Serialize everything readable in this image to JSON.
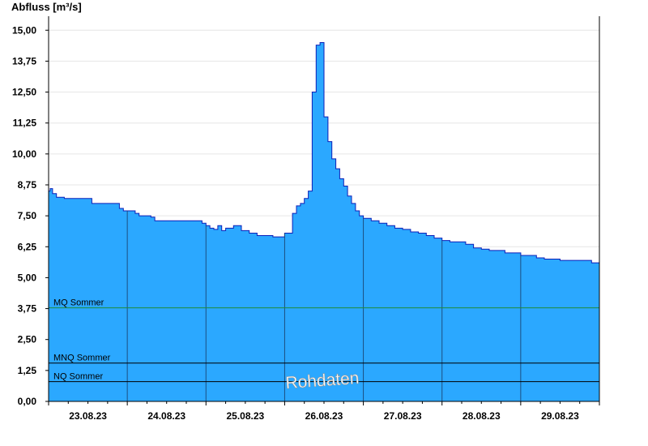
{
  "chart_data": {
    "type": "area",
    "ylabel": "Abfluss [m³/s]",
    "ylim": [
      0,
      15.5
    ],
    "yticks": [
      "0,00",
      "1,25",
      "2,50",
      "3,75",
      "5,00",
      "6,25",
      "7,50",
      "8,75",
      "10,00",
      "11,25",
      "12,50",
      "13,75",
      "15,00"
    ],
    "ytick_values": [
      0,
      1.25,
      2.5,
      3.75,
      5,
      6.25,
      7.5,
      8.75,
      10,
      11.25,
      12.5,
      13.75,
      15
    ],
    "xlim": [
      0,
      7
    ],
    "categories": [
      "23.08.23",
      "24.08.23",
      "25.08.23",
      "26.08.23",
      "27.08.23",
      "28.08.23",
      "29.08.23"
    ],
    "x": [
      0,
      0.02,
      0.05,
      0.1,
      0.2,
      0.4,
      0.55,
      0.58,
      0.9,
      0.95,
      1.1,
      1.15,
      1.3,
      1.35,
      1.5,
      1.9,
      1.95,
      2.0,
      2.05,
      2.1,
      2.15,
      2.2,
      2.25,
      2.35,
      2.45,
      2.55,
      2.65,
      2.7,
      2.75,
      2.85,
      3.0,
      3.1,
      3.15,
      3.2,
      3.25,
      3.3,
      3.35,
      3.4,
      3.45,
      3.5,
      3.55,
      3.6,
      3.65,
      3.7,
      3.75,
      3.8,
      3.85,
      3.9,
      3.95,
      4.0,
      4.1,
      4.2,
      4.3,
      4.4,
      4.5,
      4.6,
      4.7,
      4.8,
      4.9,
      5.0,
      5.1,
      5.3,
      5.4,
      5.5,
      5.6,
      5.8,
      6.0,
      6.2,
      6.3,
      6.5,
      6.6,
      6.8,
      6.9,
      7.0
    ],
    "values": [
      8.5,
      8.6,
      8.4,
      8.25,
      8.2,
      8.2,
      8.0,
      8.0,
      7.8,
      7.7,
      7.6,
      7.5,
      7.45,
      7.3,
      7.3,
      7.3,
      7.2,
      7.1,
      7.0,
      6.95,
      7.1,
      6.9,
      7.0,
      7.1,
      6.9,
      6.8,
      6.7,
      6.7,
      6.7,
      6.65,
      6.8,
      7.6,
      7.9,
      8.0,
      8.2,
      8.5,
      12.5,
      14.4,
      14.5,
      11.5,
      10.5,
      9.8,
      9.4,
      9.0,
      8.7,
      8.3,
      8.0,
      7.7,
      7.5,
      7.4,
      7.3,
      7.2,
      7.1,
      7.0,
      6.95,
      6.85,
      6.8,
      6.7,
      6.6,
      6.5,
      6.45,
      6.35,
      6.2,
      6.15,
      6.1,
      6.0,
      5.9,
      5.8,
      5.75,
      5.7,
      5.7,
      5.7,
      5.6,
      5.55
    ],
    "reference_lines": [
      {
        "name": "MQ Sommer",
        "value": 3.78,
        "color": "#1f8a3a"
      },
      {
        "name": "MNQ Sommer",
        "value": 1.55,
        "color": "#000000"
      },
      {
        "name": "NQ Sommer",
        "value": 0.8,
        "color": "#000000"
      }
    ],
    "watermark": "Rohdaten",
    "colors": {
      "fill": "#2ba8ff",
      "stroke": "#0b1fb8",
      "grid": "#e6e6e6",
      "day_line": "#1c4f80"
    }
  }
}
